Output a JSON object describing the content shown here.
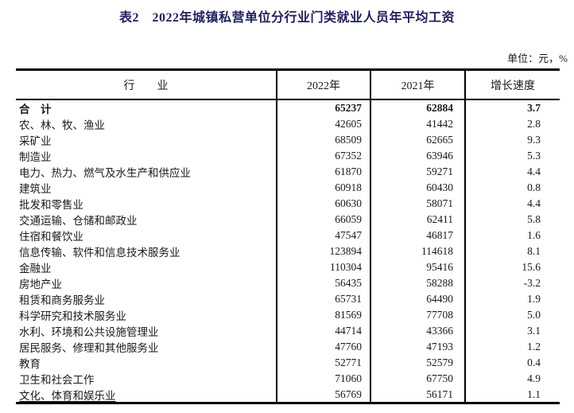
{
  "title": "表2　2022年城镇私营单位分行业门类就业人员年平均工资",
  "unit_note": "单位：元，%",
  "table": {
    "headers": [
      "行　　业",
      "2022年",
      "2021年",
      "增长速度"
    ],
    "rows": [
      {
        "industry": "合　计",
        "y2022": "65237",
        "y2021": "62884",
        "growth": "3.7",
        "bold": true
      },
      {
        "industry": "农、林、牧、渔业",
        "y2022": "42605",
        "y2021": "41442",
        "growth": "2.8"
      },
      {
        "industry": "采矿业",
        "y2022": "68509",
        "y2021": "62665",
        "growth": "9.3"
      },
      {
        "industry": "制造业",
        "y2022": "67352",
        "y2021": "63946",
        "growth": "5.3"
      },
      {
        "industry": "电力、热力、燃气及水生产和供应业",
        "y2022": "61870",
        "y2021": "59271",
        "growth": "4.4"
      },
      {
        "industry": "建筑业",
        "y2022": "60918",
        "y2021": "60430",
        "growth": "0.8"
      },
      {
        "industry": "批发和零售业",
        "y2022": "60630",
        "y2021": "58071",
        "growth": "4.4"
      },
      {
        "industry": "交通运输、仓储和邮政业",
        "y2022": "66059",
        "y2021": "62411",
        "growth": "5.8"
      },
      {
        "industry": "住宿和餐饮业",
        "y2022": "47547",
        "y2021": "46817",
        "growth": "1.6"
      },
      {
        "industry": "信息传输、软件和信息技术服务业",
        "y2022": "123894",
        "y2021": "114618",
        "growth": "8.1"
      },
      {
        "industry": "金融业",
        "y2022": "110304",
        "y2021": "95416",
        "growth": "15.6"
      },
      {
        "industry": "房地产业",
        "y2022": "56435",
        "y2021": "58288",
        "growth": "-3.2"
      },
      {
        "industry": "租赁和商务服务业",
        "y2022": "65731",
        "y2021": "64490",
        "growth": "1.9"
      },
      {
        "industry": "科学研究和技术服务业",
        "y2022": "81569",
        "y2021": "77708",
        "growth": "5.0"
      },
      {
        "industry": "水利、环境和公共设施管理业",
        "y2022": "44714",
        "y2021": "43366",
        "growth": "3.1"
      },
      {
        "industry": "居民服务、修理和其他服务业",
        "y2022": "47760",
        "y2021": "47193",
        "growth": "1.2"
      },
      {
        "industry": "教育",
        "y2022": "52771",
        "y2021": "52579",
        "growth": "0.4"
      },
      {
        "industry": "卫生和社会工作",
        "y2022": "71060",
        "y2021": "67750",
        "growth": "4.9"
      },
      {
        "industry": "文化、体育和娱乐业",
        "y2022": "56769",
        "y2021": "56171",
        "growth": "1.1",
        "underline": true
      }
    ]
  },
  "colors": {
    "title_text": "#1f1f63",
    "body_text": "#1a1a1a",
    "border": "#000000",
    "background": "#ffffff"
  },
  "chart_data": {
    "type": "table",
    "title": "表2　2022年城镇私营单位分行业门类就业人员年平均工资",
    "unit": "元，%",
    "columns": [
      "行业",
      "2022年",
      "2021年",
      "增长速度"
    ],
    "categories": [
      "合计",
      "农、林、牧、渔业",
      "采矿业",
      "制造业",
      "电力、热力、燃气及水生产和供应业",
      "建筑业",
      "批发和零售业",
      "交通运输、仓储和邮政业",
      "住宿和餐饮业",
      "信息传输、软件和信息技术服务业",
      "金融业",
      "房地产业",
      "租赁和商务服务业",
      "科学研究和技术服务业",
      "水利、环境和公共设施管理业",
      "居民服务、修理和其他服务业",
      "教育",
      "卫生和社会工作",
      "文化、体育和娱乐业"
    ],
    "series": [
      {
        "name": "2022年",
        "values": [
          65237,
          42605,
          68509,
          67352,
          61870,
          60918,
          60630,
          66059,
          47547,
          123894,
          110304,
          56435,
          65731,
          81569,
          44714,
          47760,
          52771,
          71060,
          56769
        ]
      },
      {
        "name": "2021年",
        "values": [
          62884,
          41442,
          62665,
          63946,
          59271,
          60430,
          58071,
          62411,
          46817,
          114618,
          95416,
          58288,
          64490,
          77708,
          43366,
          47193,
          52579,
          67750,
          56171
        ]
      },
      {
        "name": "增长速度",
        "values": [
          3.7,
          2.8,
          9.3,
          5.3,
          4.4,
          0.8,
          4.4,
          5.8,
          1.6,
          8.1,
          15.6,
          -3.2,
          1.9,
          5.0,
          3.1,
          1.2,
          0.4,
          4.9,
          1.1
        ]
      }
    ]
  }
}
